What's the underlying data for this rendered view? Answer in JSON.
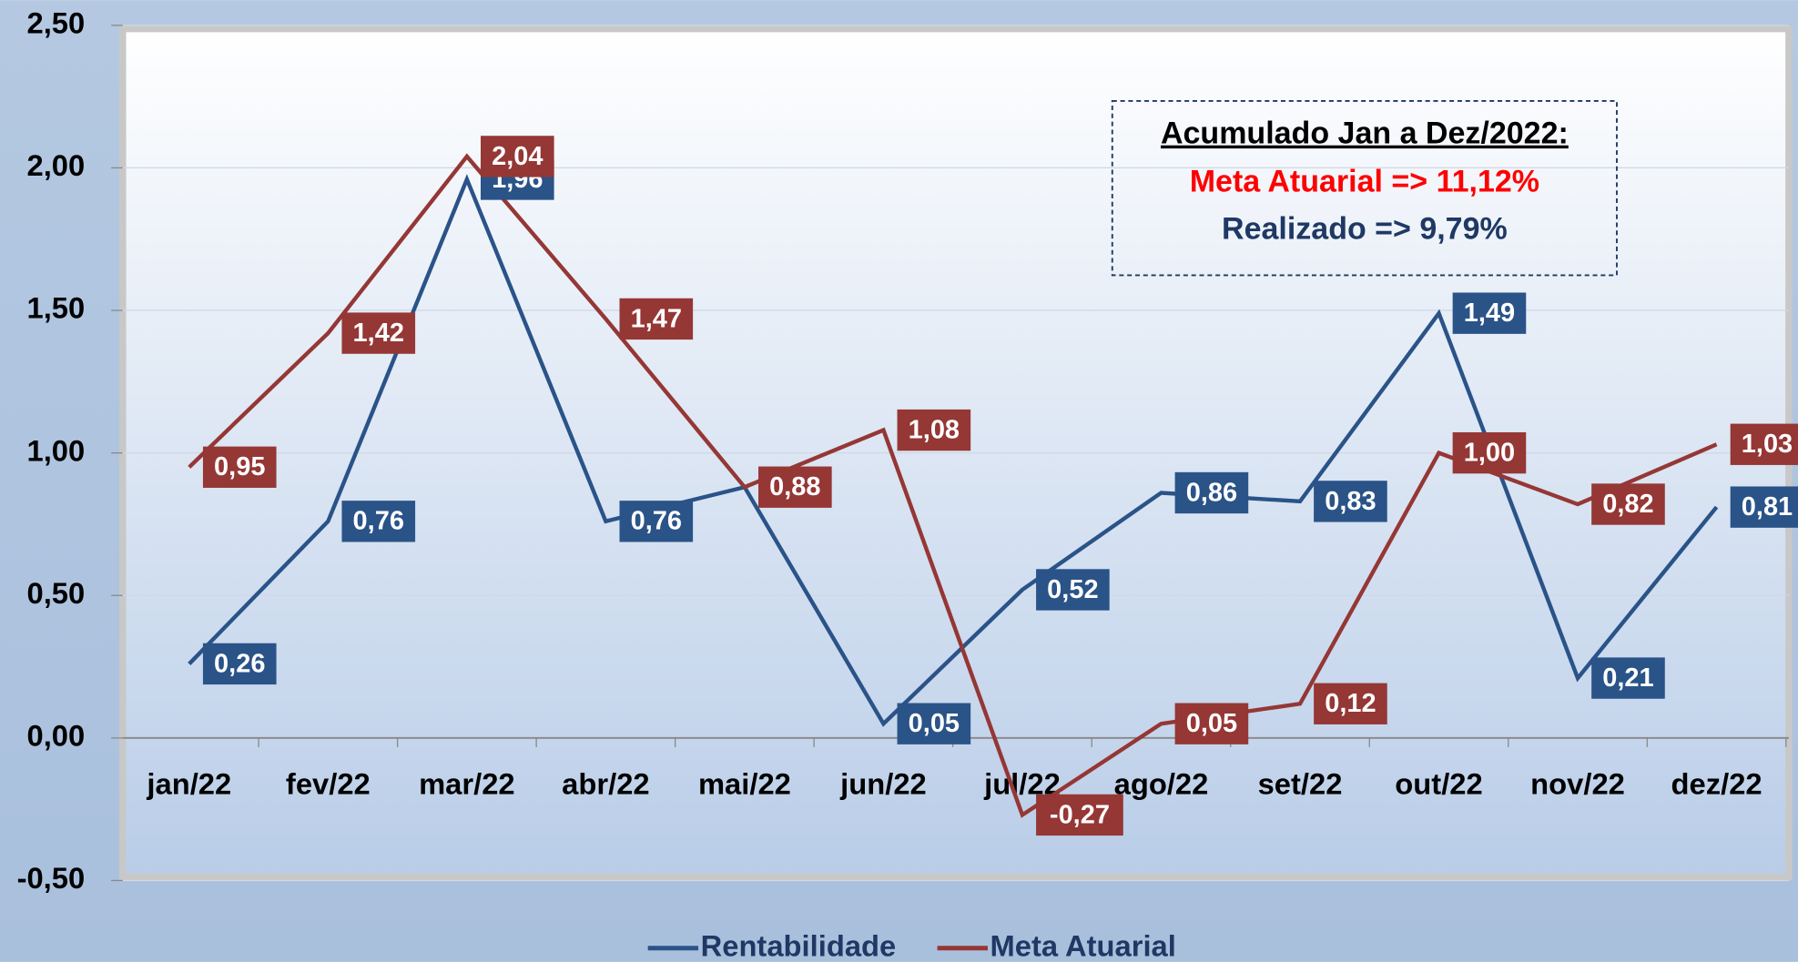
{
  "chart_data": {
    "type": "line",
    "categories": [
      "jan/22",
      "fev/22",
      "mar/22",
      "abr/22",
      "mai/22",
      "jun/22",
      "jul/22",
      "ago/22",
      "set/22",
      "out/22",
      "nov/22",
      "dez/22"
    ],
    "series": [
      {
        "name": "Rentabilidade",
        "color": "#2a5388",
        "values": [
          0.26,
          0.76,
          1.96,
          0.76,
          0.88,
          0.05,
          0.52,
          0.86,
          0.83,
          1.49,
          0.21,
          0.81
        ],
        "value_labels": [
          "0,26",
          "0,76",
          "1,96",
          "0,76",
          null,
          "0,05",
          "0,52",
          "0,86",
          "0,83",
          "1,49",
          "0,21",
          "0,81"
        ]
      },
      {
        "name": "Meta Atuarial",
        "color": "#953735",
        "values": [
          0.95,
          1.42,
          2.04,
          1.47,
          0.88,
          1.08,
          -0.27,
          0.05,
          0.12,
          1.0,
          0.82,
          1.03
        ],
        "value_labels": [
          "0,95",
          "1,42",
          "2,04",
          "1,47",
          "0,88",
          "1,08",
          "-0,27",
          "0,05",
          "0,12",
          "1,00",
          "0,82",
          "1,03"
        ]
      }
    ],
    "ylim": [
      -0.5,
      2.5
    ],
    "yticks": [
      {
        "value": -0.5,
        "label": "-0,50"
      },
      {
        "value": 0,
        "label": "0,00"
      },
      {
        "value": 0.5,
        "label": "0,50"
      },
      {
        "value": 1,
        "label": "1,00"
      },
      {
        "value": 1.5,
        "label": "1,50"
      },
      {
        "value": 2,
        "label": "2,00"
      },
      {
        "value": 2.5,
        "label": "2,50"
      }
    ],
    "grid": true,
    "annotation": {
      "title": "Acumulado Jan a Dez/2022:",
      "lines": [
        "Meta Atuarial => 11,12%",
        "Realizado =>  9,79%"
      ]
    },
    "legend": "bottom"
  }
}
